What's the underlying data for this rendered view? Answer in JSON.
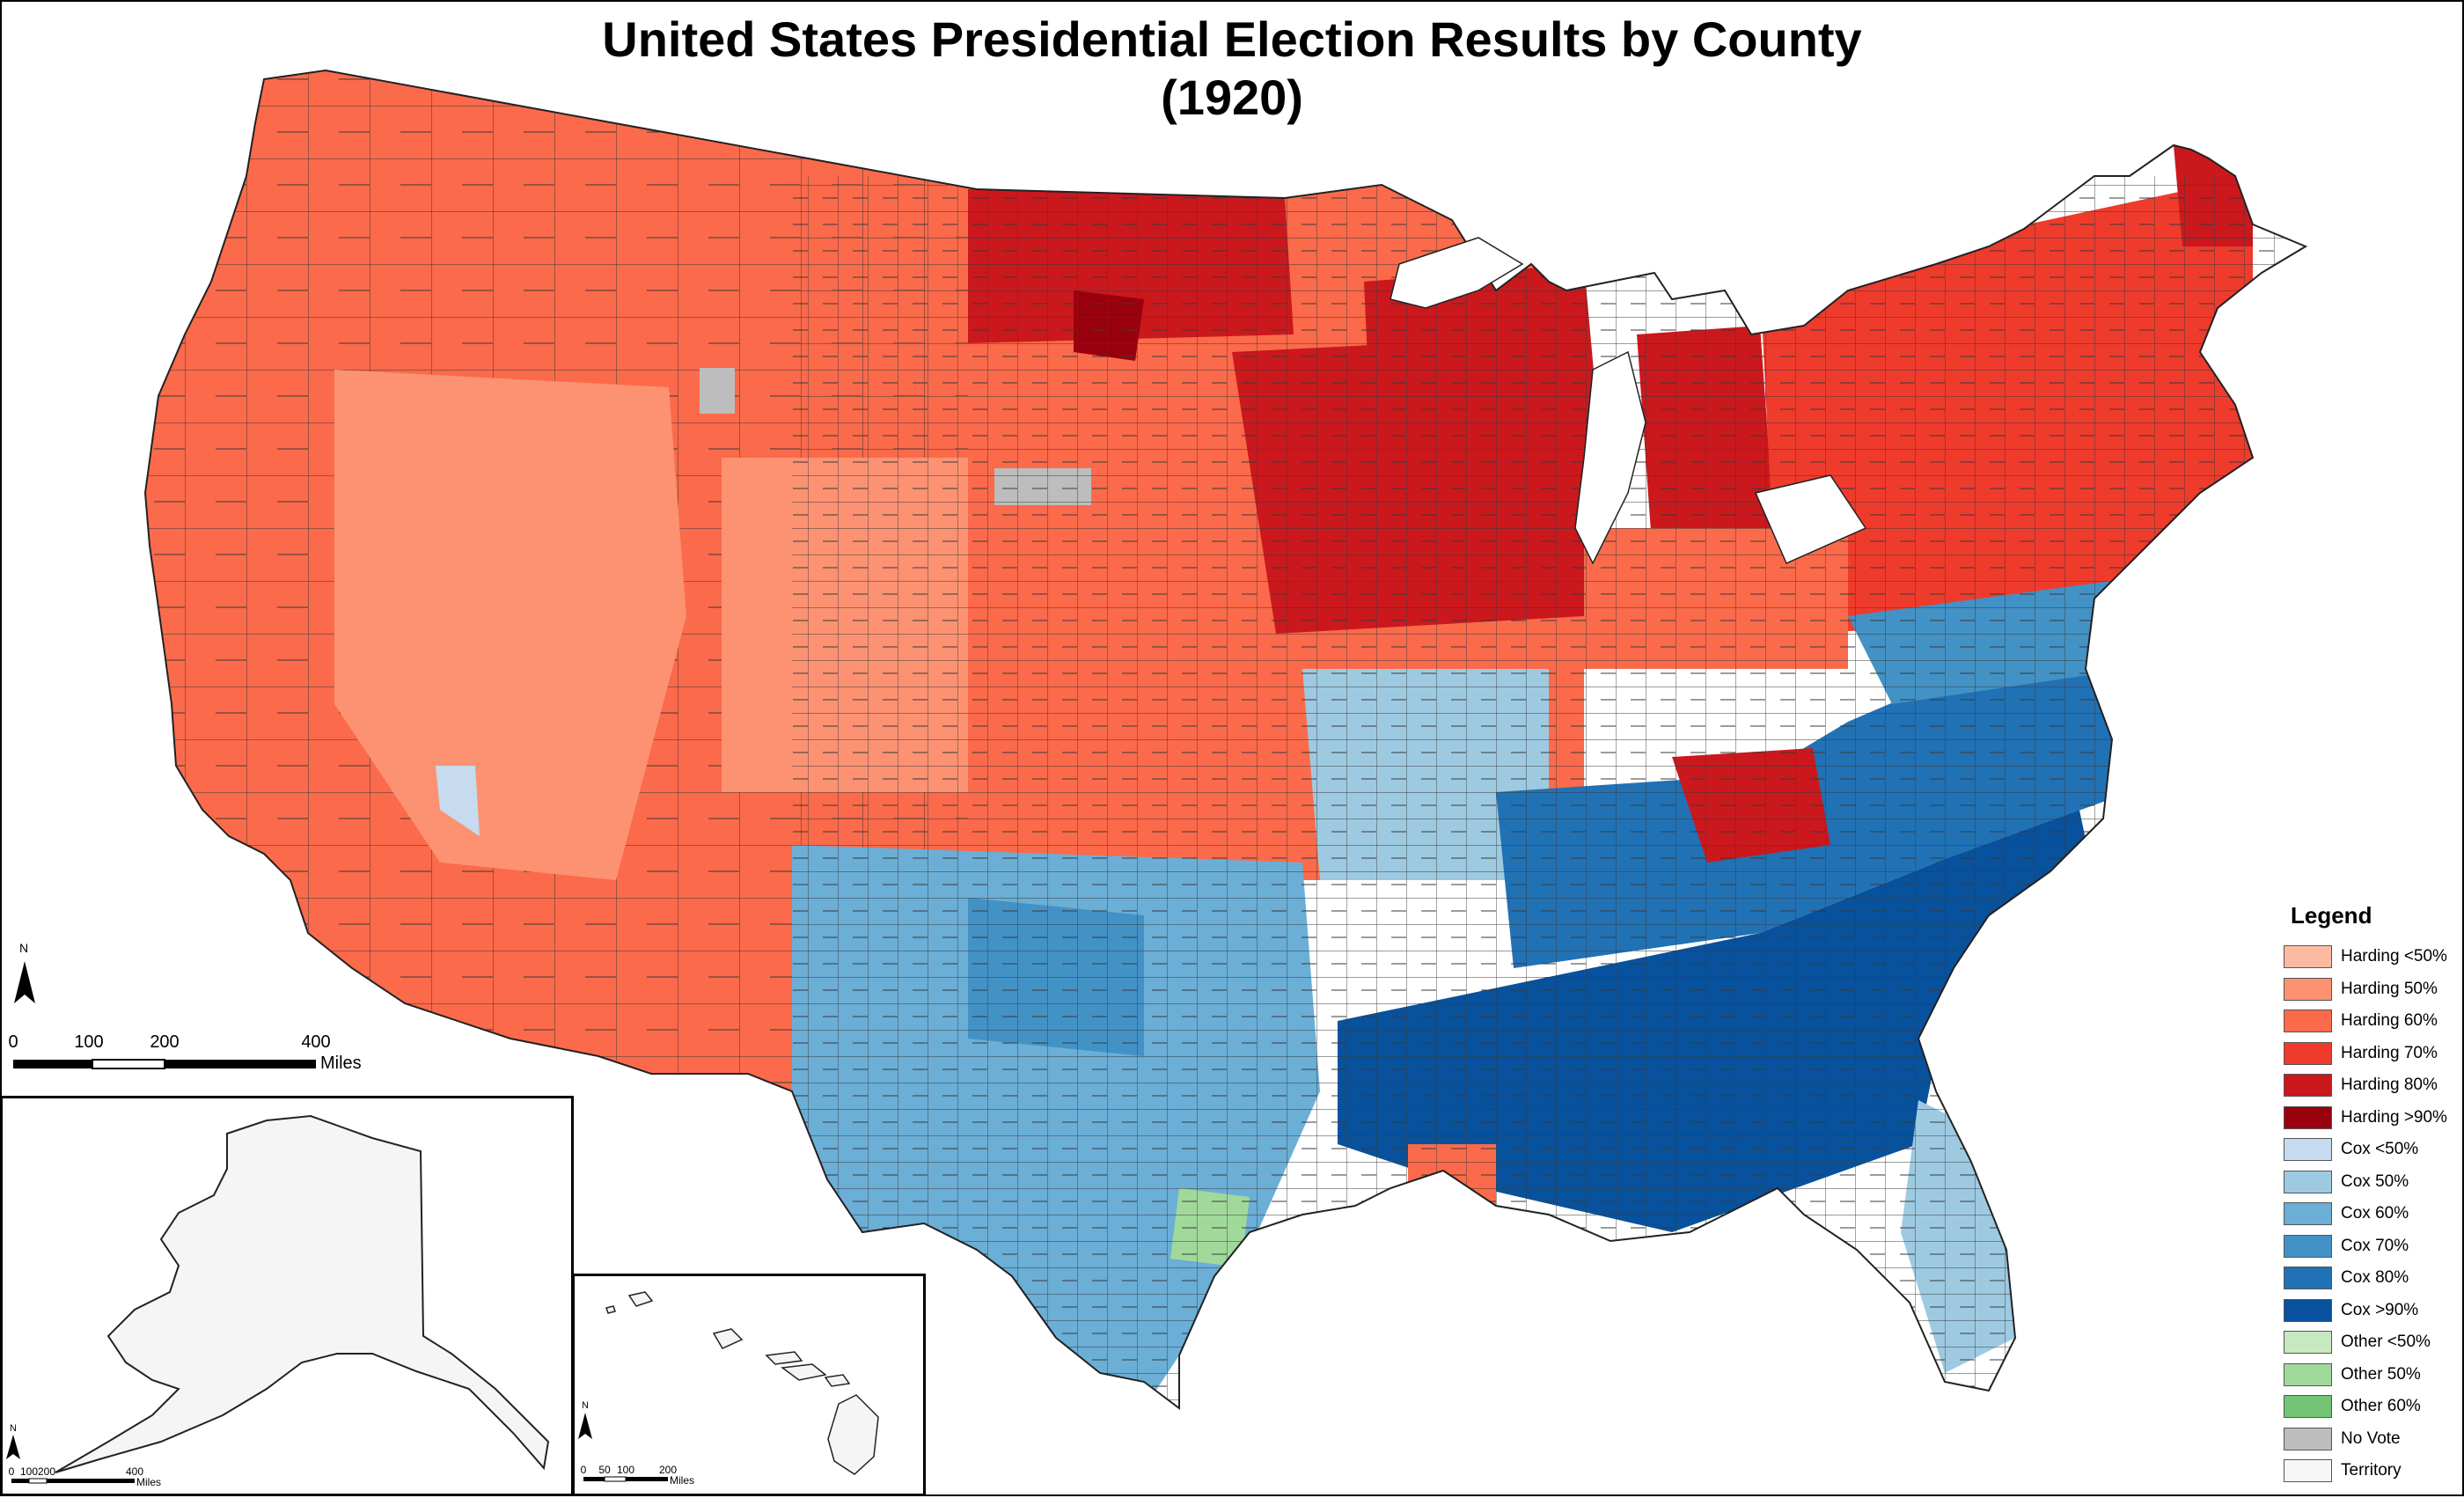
{
  "title": {
    "line1": "United States Presidential Election Results by County",
    "line2": "(1920)"
  },
  "legend": {
    "heading": "Legend",
    "items": [
      {
        "label": "Harding <50%",
        "color": "#fcbba1"
      },
      {
        "label": "Harding 50%",
        "color": "#fc9272"
      },
      {
        "label": "Harding 60%",
        "color": "#fb6a4a"
      },
      {
        "label": "Harding 70%",
        "color": "#ef3b2c"
      },
      {
        "label": "Harding 80%",
        "color": "#cb181d"
      },
      {
        "label": "Harding >90%",
        "color": "#99000d"
      },
      {
        "label": "Cox <50%",
        "color": "#c6dbef"
      },
      {
        "label": "Cox 50%",
        "color": "#9ecae1"
      },
      {
        "label": "Cox 60%",
        "color": "#6baed6"
      },
      {
        "label": "Cox 70%",
        "color": "#4292c6"
      },
      {
        "label": "Cox 80%",
        "color": "#2171b5"
      },
      {
        "label": "Cox >90%",
        "color": "#08519c"
      },
      {
        "label": "Other <50%",
        "color": "#c7e9c0"
      },
      {
        "label": "Other 50%",
        "color": "#a1d99b"
      },
      {
        "label": "Other 60%",
        "color": "#74c476"
      },
      {
        "label": "No Vote",
        "color": "#bdbdbd"
      },
      {
        "label": "Territory",
        "color": "#f7f7f7"
      }
    ]
  },
  "north_arrow": {
    "label": "N"
  },
  "scale_main": {
    "ticks": [
      "0",
      "100",
      "200",
      "400"
    ],
    "unit": "Miles"
  },
  "scale_alaska": {
    "ticks": [
      "0",
      "100",
      "200",
      "400"
    ],
    "unit": "Miles"
  },
  "scale_hawaii": {
    "ticks": [
      "0",
      "50",
      "100",
      "200"
    ],
    "unit": "Miles"
  }
}
